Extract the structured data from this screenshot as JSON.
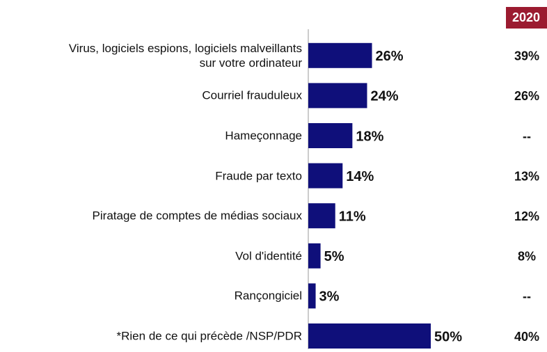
{
  "chart_data": {
    "type": "bar",
    "orientation": "horizontal",
    "categories": [
      "Virus, logiciels espions, logiciels malveillants\nsur votre ordinateur",
      "Courriel frauduleux",
      "Hameçonnage",
      "Fraude par texto",
      "Piratage de comptes de médias sociaux",
      "Vol d'identité",
      "Rançongiciel",
      "*Rien de ce qui précède /NSP/PDR"
    ],
    "values": [
      26,
      24,
      18,
      14,
      11,
      5,
      3,
      50
    ],
    "value_labels": [
      "26%",
      "24%",
      "18%",
      "14%",
      "11%",
      "5%",
      "3%",
      "50%"
    ],
    "color": "#0f0f7a",
    "xlim": [
      0,
      50
    ],
    "comparison": {
      "title": "2020",
      "color": "#9b1b30",
      "values": [
        39,
        26,
        null,
        13,
        12,
        8,
        null,
        40
      ],
      "value_labels": [
        "39%",
        "26%",
        "--",
        "13%",
        "12%",
        "8%",
        "--",
        "40%"
      ]
    }
  }
}
